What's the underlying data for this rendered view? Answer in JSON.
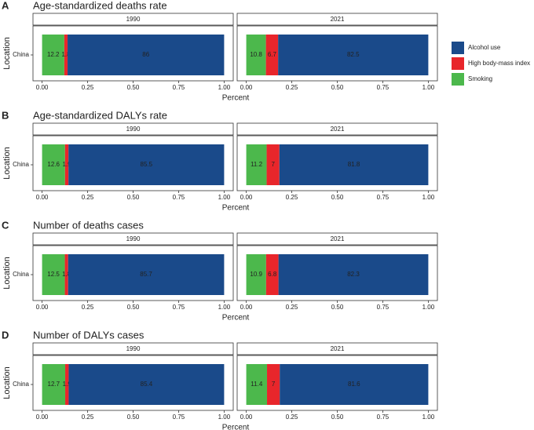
{
  "chart_data": {
    "type": "bar",
    "panels": [
      {
        "label": "A",
        "title": "Age-standardized deaths rate"
      },
      {
        "label": "B",
        "title": "Age-standardized DALYs rate"
      },
      {
        "label": "C",
        "title": "Number of deaths cases"
      },
      {
        "label": "D",
        "title": "Number of DALYs cases"
      }
    ],
    "facets": [
      "1990",
      "2021"
    ],
    "categories": [
      "China"
    ],
    "xlabel": "Percent",
    "ylabel": "Location",
    "xlim": [
      -0.05,
      1.05
    ],
    "xticks": [
      {
        "value": 0,
        "label": "0.00"
      },
      {
        "value": 0.25,
        "label": "0.25"
      },
      {
        "value": 0.5,
        "label": "0.50"
      },
      {
        "value": 0.75,
        "label": "0.75"
      },
      {
        "value": 1,
        "label": "1.00"
      }
    ],
    "series": [
      {
        "name": "Alcohol use",
        "color": "#1a4a8a",
        "values": [
          [
            0.86,
            0.825
          ],
          [
            0.855,
            0.818
          ],
          [
            0.857,
            0.823
          ],
          [
            0.854,
            0.816
          ]
        ],
        "value_labels": [
          [
            "86",
            "82.5"
          ],
          [
            "85.5",
            "81.8"
          ],
          [
            "85.7",
            "82.3"
          ],
          [
            "85.4",
            "81.6"
          ]
        ]
      },
      {
        "name": "High body-mass index",
        "color": "#e8262b",
        "values": [
          [
            0.018,
            0.067
          ],
          [
            0.019,
            0.07
          ],
          [
            0.018,
            0.068
          ],
          [
            0.019,
            0.07
          ]
        ],
        "value_labels": [
          [
            "1.8",
            "6.7"
          ],
          [
            "1.9",
            "7"
          ],
          [
            "1.8",
            "6.8"
          ],
          [
            "1.9",
            "7"
          ]
        ]
      },
      {
        "name": "Smoking",
        "color": "#4cb84c",
        "values": [
          [
            0.122,
            0.108
          ],
          [
            0.126,
            0.112
          ],
          [
            0.125,
            0.109
          ],
          [
            0.127,
            0.114
          ]
        ],
        "value_labels": [
          [
            "12.2",
            "10.8"
          ],
          [
            "12.6",
            "11.2"
          ],
          [
            "12.5",
            "10.9"
          ],
          [
            "12.7",
            "11.4"
          ]
        ]
      }
    ]
  }
}
